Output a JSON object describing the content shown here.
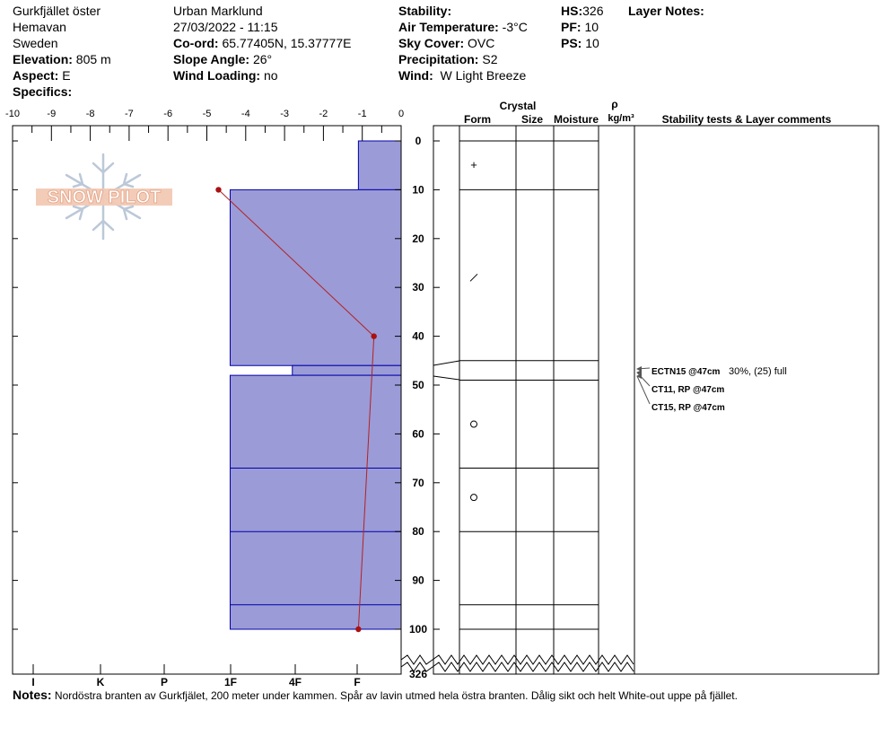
{
  "header": {
    "location": "Gurkfjället öster",
    "region": "Hemavan",
    "country": "Sweden",
    "elevation_label": "Elevation:",
    "elevation": "805 m",
    "aspect_label": "Aspect:",
    "aspect": "E",
    "specifics_label": "Specifics:",
    "observer": "Urban Marklund",
    "datetime": "27/03/2022 - 11:15",
    "coord_label": "Co-ord:",
    "coord": "65.77405N, 15.37777E",
    "slope_label": "Slope Angle:",
    "slope": "26°",
    "wind_loading_label": "Wind Loading:",
    "wind_loading": "no",
    "stability_label": "Stability:",
    "air_temp_label": "Air Temperature:",
    "air_temp": "-3°C",
    "sky_label": "Sky Cover:",
    "sky": "OVC",
    "precip_label": "Precipitation:",
    "precip": "S2",
    "wind_label": "Wind:",
    "wind": "W Light Breeze",
    "hs_label": "HS:",
    "hs": "326",
    "pf_label": "PF:",
    "pf": "10",
    "ps_label": "PS:",
    "ps": "10",
    "layer_notes_label": "Layer Notes:"
  },
  "logo_text": "SNOW PILOT",
  "table_headers": {
    "crystal": "Crystal",
    "form": "Form",
    "size": "Size",
    "moisture": "Moisture",
    "rho": "ρ",
    "density_unit": "kg/m³",
    "comments": "Stability tests & Layer comments"
  },
  "notes_label": "Notes:",
  "notes": "Nordöstra branten av Gurkfjälet, 200 meter under kammen. Spår av lavin utmed hela östra  branten. Dålig sikt och helt White-out uppe på fjället.",
  "colors": {
    "hardness_fill": "#9b9bd7",
    "layer_line": "#0000aa",
    "temp_line": "#b22222",
    "temp_point": "#aa1111"
  },
  "chart_data": {
    "type": "snow-profile",
    "temperature_axis": {
      "ticks": [
        -10,
        -9,
        -8,
        -7,
        -6,
        -5,
        -4,
        -3,
        -2,
        -1,
        0
      ],
      "range": [
        -10,
        0
      ]
    },
    "depth_axis": {
      "ticks": [
        0,
        10,
        20,
        30,
        40,
        50,
        60,
        70,
        80,
        90,
        100
      ],
      "range": [
        0,
        100
      ],
      "bottom_label": "326"
    },
    "hardness_axis": {
      "labels": [
        "I",
        "K",
        "P",
        "1F",
        "4F",
        "F"
      ]
    },
    "hardness_layers": [
      {
        "top": 0,
        "bottom": 10,
        "temp_equiv": -1.1
      },
      {
        "top": 10,
        "bottom": 46,
        "temp_equiv": -4.4
      },
      {
        "top": 46,
        "bottom": 48,
        "temp_equiv": -2.8
      },
      {
        "top": 48,
        "bottom": 100,
        "temp_equiv": -4.4
      }
    ],
    "layer_lines": [
      67,
      80,
      95
    ],
    "temperature_profile": [
      {
        "depth": 10,
        "temp": -4.7
      },
      {
        "depth": 40,
        "temp": -0.7
      },
      {
        "depth": 100,
        "temp": -1.1
      }
    ],
    "layer_boundaries": [
      0,
      10,
      45,
      49,
      67,
      80,
      95,
      100
    ],
    "crystal_forms": [
      {
        "depth": 5,
        "symbol": "+"
      },
      {
        "depth": 28,
        "symbol": "/"
      },
      {
        "depth": 58,
        "symbol": "o"
      },
      {
        "depth": 73,
        "symbol": "o"
      }
    ],
    "stability_tests": [
      {
        "label": "ECTN15 @47cm",
        "extra": "30%, (25) full"
      },
      {
        "label": "CT11, RP @47cm",
        "extra": ""
      },
      {
        "label": "CT15, RP @47cm",
        "extra": ""
      }
    ]
  }
}
